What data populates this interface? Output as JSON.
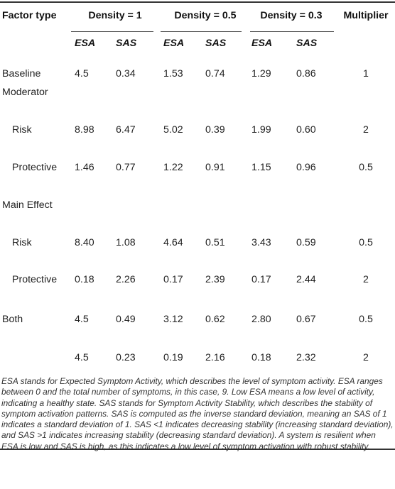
{
  "header": {
    "factor_type": "Factor type",
    "groups": [
      "Density = 1",
      "Density = 0.5",
      "Density = 0.3"
    ],
    "multiplier": "Multiplier",
    "subheaders": [
      "ESA",
      "SAS",
      "ESA",
      "SAS",
      "ESA",
      "SAS"
    ]
  },
  "rows": [
    {
      "label": "Baseline",
      "values": [
        "4.5",
        "0.34",
        "1.53",
        "0.74",
        "1.29",
        "0.86"
      ],
      "multiplier": "1"
    },
    {
      "label": "Moderator",
      "values": [
        "",
        "",
        "",
        "",
        "",
        ""
      ],
      "multiplier": ""
    },
    {
      "label": "Risk",
      "values": [
        "8.98",
        "6.47",
        "5.02",
        "0.39",
        "1.99",
        "0.60"
      ],
      "multiplier": "2"
    },
    {
      "label": "Protective",
      "values": [
        "1.46",
        "0.77",
        "1.22",
        "0.91",
        "1.15",
        "0.96"
      ],
      "multiplier": "0.5"
    },
    {
      "label": "Main Effect",
      "values": [
        "",
        "",
        "",
        "",
        "",
        ""
      ],
      "multiplier": ""
    },
    {
      "label": "Risk",
      "values": [
        "8.40",
        "1.08",
        "4.64",
        "0.51",
        "3.43",
        "0.59"
      ],
      "multiplier": "0.5"
    },
    {
      "label": "Protective",
      "values": [
        "0.18",
        "2.26",
        "0.17",
        "2.39",
        "0.17",
        "2.44"
      ],
      "multiplier": "2"
    },
    {
      "label": "Both",
      "values": [
        "4.5",
        "0.49",
        "3.12",
        "0.62",
        "2.80",
        "0.67"
      ],
      "multiplier": "0.5"
    },
    {
      "label": "",
      "values": [
        "4.5",
        "0.23",
        "0.19",
        "2.16",
        "0.18",
        "2.32"
      ],
      "multiplier": "2"
    }
  ],
  "footnote": "ESA stands for Expected Symptom Activity, which describes the level of symptom activity. ESA ranges between 0 and the total number of symptoms, in this case, 9. Low ESA means a low level of activity, indicating a healthy state. SAS stands for Symptom Activity Stability, which describes the stability of symptom activation patterns. SAS is computed as the inverse standard deviation, meaning an SAS of 1 indicates a standard deviation of 1. SAS <1 indicates decreasing stability (increasing standard deviation), and SAS >1 indicates increasing stability (decreasing standard deviation). A system is resilient when ESA is low and SAS is high, as this indicates a low level of symptom activation with robust stability."
}
